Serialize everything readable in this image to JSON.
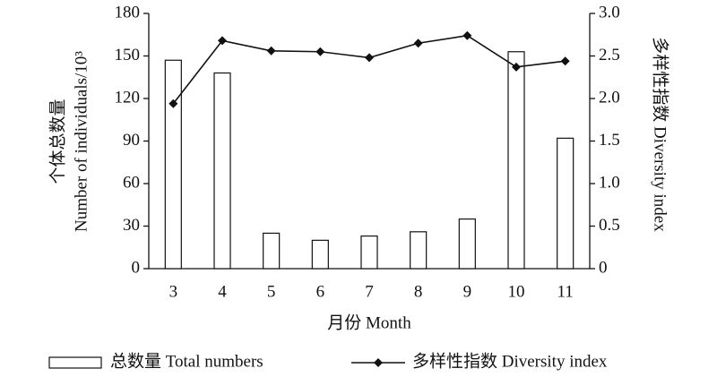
{
  "chart_data": {
    "type": "bar-line",
    "x_label": "月份 Month",
    "y_label": [
      "个体总数量",
      "Number of individuals/10³"
    ],
    "y2_label": "多样性指数 Diversity index",
    "categories": [
      "3",
      "4",
      "5",
      "6",
      "7",
      "8",
      "9",
      "10",
      "11"
    ],
    "series": [
      {
        "name": "总数量 Total numbers",
        "kind": "bar",
        "color": "#ffffff",
        "values": [
          147,
          138,
          25,
          20,
          23,
          26,
          35,
          153,
          92
        ]
      },
      {
        "name": "多样性指数 Diversity index",
        "kind": "line",
        "axis": "y2",
        "color": "#111111",
        "values": [
          1.94,
          2.68,
          2.56,
          2.55,
          2.48,
          2.65,
          2.74,
          2.37,
          2.44
        ]
      }
    ],
    "ylim": [
      0,
      180
    ],
    "yticks": [
      0,
      30,
      60,
      90,
      120,
      150,
      180
    ],
    "y2lim": [
      0,
      3
    ],
    "y2ticks": [
      0,
      0.5,
      {
        "value": 1,
        "label": "1.0"
      },
      1.5,
      {
        "value": 2,
        "label": "2.0"
      },
      2.5,
      {
        "value": 3,
        "label": "3.0"
      }
    ]
  }
}
